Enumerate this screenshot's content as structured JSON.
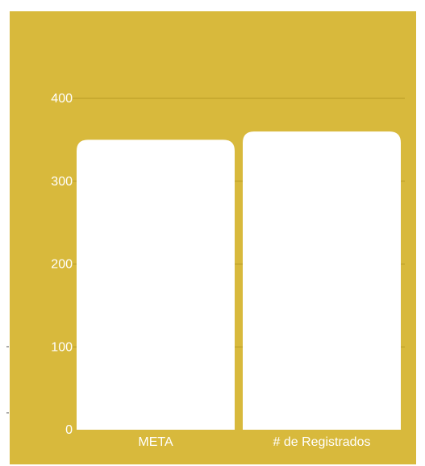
{
  "colors": {
    "panel": "#d8b93c",
    "bar": "#ffffff",
    "grid": "#b89b25",
    "text": "#ffffff"
  },
  "chart_data": {
    "type": "bar",
    "categories": [
      "META",
      "# de Registrados"
    ],
    "values": [
      350,
      360
    ],
    "title": "",
    "xlabel": "",
    "ylabel": "",
    "ylim": [
      0,
      400
    ],
    "yticks": [
      0,
      100,
      200,
      300,
      400
    ],
    "grid": true,
    "legend": "none"
  }
}
